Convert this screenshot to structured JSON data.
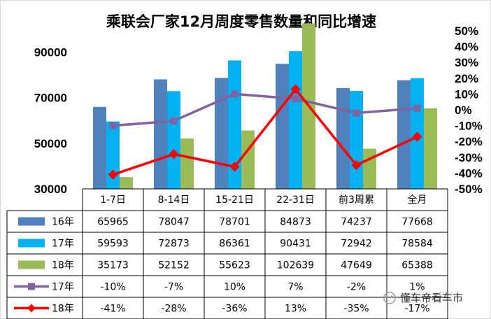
{
  "chart_data": {
    "type": "bar",
    "title": "乘联会厂家12月周度零售数量和同比增速",
    "categories": [
      "1-7日",
      "8-14日",
      "15-21日",
      "22-31日",
      "前3周累",
      "全月"
    ],
    "ylim": [
      30000,
      100000
    ],
    "y_ticks": [
      "30000",
      "50000",
      "70000",
      "90000"
    ],
    "y2lim": [
      -0.5,
      0.5
    ],
    "y2_ticks": [
      "50%",
      "40%",
      "30%",
      "20%",
      "10%",
      "0%",
      "-10%",
      "-20%",
      "-30%",
      "-40%",
      "-50%"
    ],
    "bar_series": [
      {
        "name": "16年",
        "color": "#4F81BD",
        "values": [
          65965,
          78047,
          78701,
          84873,
          74237,
          77668
        ],
        "labels": [
          "65965",
          "78047",
          "78701",
          "84873",
          "74237",
          "77668"
        ]
      },
      {
        "name": "17年",
        "color": "#00B0F0",
        "values": [
          59593,
          72873,
          86361,
          90431,
          72942,
          78584
        ],
        "labels": [
          "59593",
          "72873",
          "86361",
          "90431",
          "72942",
          "78584"
        ]
      },
      {
        "name": "18年",
        "color": "#9BBB59",
        "values": [
          35173,
          52152,
          55623,
          102639,
          47649,
          65388
        ],
        "labels": [
          "35173",
          "52152",
          "55623",
          "102639",
          "47649",
          "65388"
        ]
      }
    ],
    "line_series": [
      {
        "name": "17年",
        "color": "#8064A2",
        "marker": "square",
        "values": [
          -0.1,
          -0.07,
          0.1,
          0.07,
          -0.02,
          0.01
        ],
        "labels": [
          "-10%",
          "-7%",
          "10%",
          "7%",
          "-2%",
          "1%"
        ]
      },
      {
        "name": "18年",
        "color": "#FF0000",
        "marker": "diamond",
        "values": [
          -0.41,
          -0.28,
          -0.36,
          0.13,
          -0.35,
          -0.17
        ],
        "labels": [
          "-41%",
          "-28%",
          "-36%",
          "13%",
          "-35%",
          "-17%"
        ]
      }
    ]
  },
  "watermark": "懂车帝看车市"
}
